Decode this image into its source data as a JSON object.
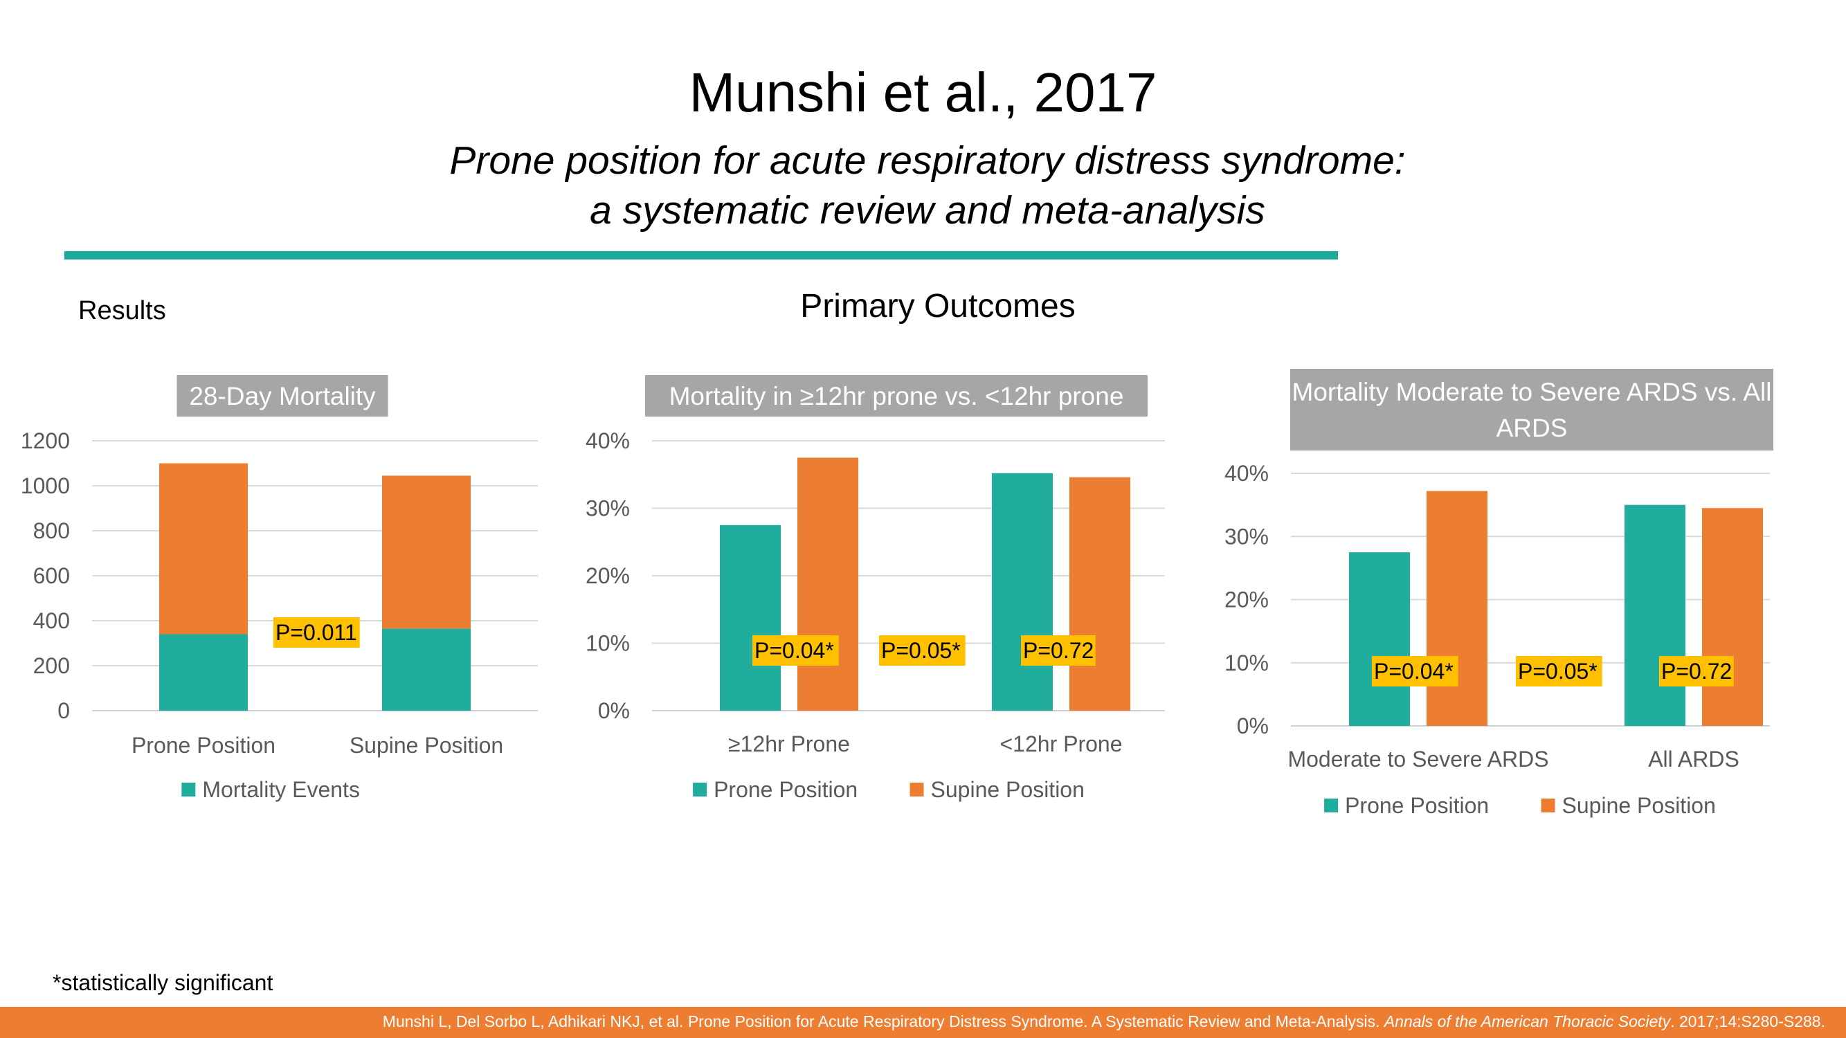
{
  "header": {
    "title": "Munshi et al., 2017",
    "subtitle_line1": "Prone position for acute respiratory distress syndrome:",
    "subtitle_line2": "a systematic review and meta-analysis"
  },
  "section": {
    "results_label": "Results",
    "primary_outcomes_label": "Primary Outcomes"
  },
  "footnote": "*statistically significant",
  "citation": {
    "text": "Munshi L, Del Sorbo L, Adhikari NKJ, et al. Prone Position for Acute Respiratory Distress Syndrome. A Systematic Review and Meta-Analysis. ",
    "journal": "Annals of the American Thoracic Society",
    "tail": ". 2017;14:S280-S288."
  },
  "colors": {
    "teal": "#20ad9e",
    "orange": "#ed7d31",
    "title_box": "#a6a6a6",
    "pvalue_box": "#ffc000",
    "accent_rule": "#1ba99c"
  },
  "chart_data": [
    {
      "type": "bar",
      "stacked": true,
      "title": "28-Day Mortality",
      "categories": [
        "Prone Position",
        "Supine Position"
      ],
      "series": [
        {
          "name": "Mortality Events",
          "color": "#20ad9e",
          "values": [
            340,
            365
          ]
        },
        {
          "name": "",
          "color": "#ed7d31",
          "values": [
            760,
            680
          ]
        }
      ],
      "ylim": [
        0,
        1200
      ],
      "yticks": [
        "0",
        "200",
        "400",
        "600",
        "800",
        "1000",
        "1200"
      ],
      "legend": [
        "Mortality Events"
      ],
      "annotations": [
        "P=0.011"
      ]
    },
    {
      "type": "bar",
      "title": "Mortality in ≥12hr prone vs. <12hr prone",
      "categories": [
        "≥12hr Prone",
        "<12hr Prone"
      ],
      "series": [
        {
          "name": "Prone Position",
          "color": "#20ad9e",
          "values": [
            27.5,
            35.2
          ]
        },
        {
          "name": "Supine Position",
          "color": "#ed7d31",
          "values": [
            37.5,
            34.6
          ]
        }
      ],
      "ylim": [
        0,
        40
      ],
      "yticks": [
        "0%",
        "10%",
        "20%",
        "30%",
        "40%"
      ],
      "legend": [
        "Prone Position",
        "Supine Position"
      ],
      "annotations": [
        "P=0.04*",
        "P=0.05*",
        "P=0.72"
      ]
    },
    {
      "type": "bar",
      "title": "Mortality Moderate to Severe ARDS vs. All ARDS",
      "categories": [
        "Moderate to Severe ARDS",
        "All ARDS"
      ],
      "series": [
        {
          "name": "Prone Position",
          "color": "#20ad9e",
          "values": [
            27.5,
            35.0
          ]
        },
        {
          "name": "Supine Position",
          "color": "#ed7d31",
          "values": [
            37.2,
            34.5
          ]
        }
      ],
      "ylim": [
        0,
        40
      ],
      "yticks": [
        "0%",
        "10%",
        "20%",
        "30%",
        "40%"
      ],
      "legend": [
        "Prone Position",
        "Supine Position"
      ],
      "annotations": [
        "P=0.04*",
        "P=0.05*",
        "P=0.72"
      ]
    }
  ]
}
